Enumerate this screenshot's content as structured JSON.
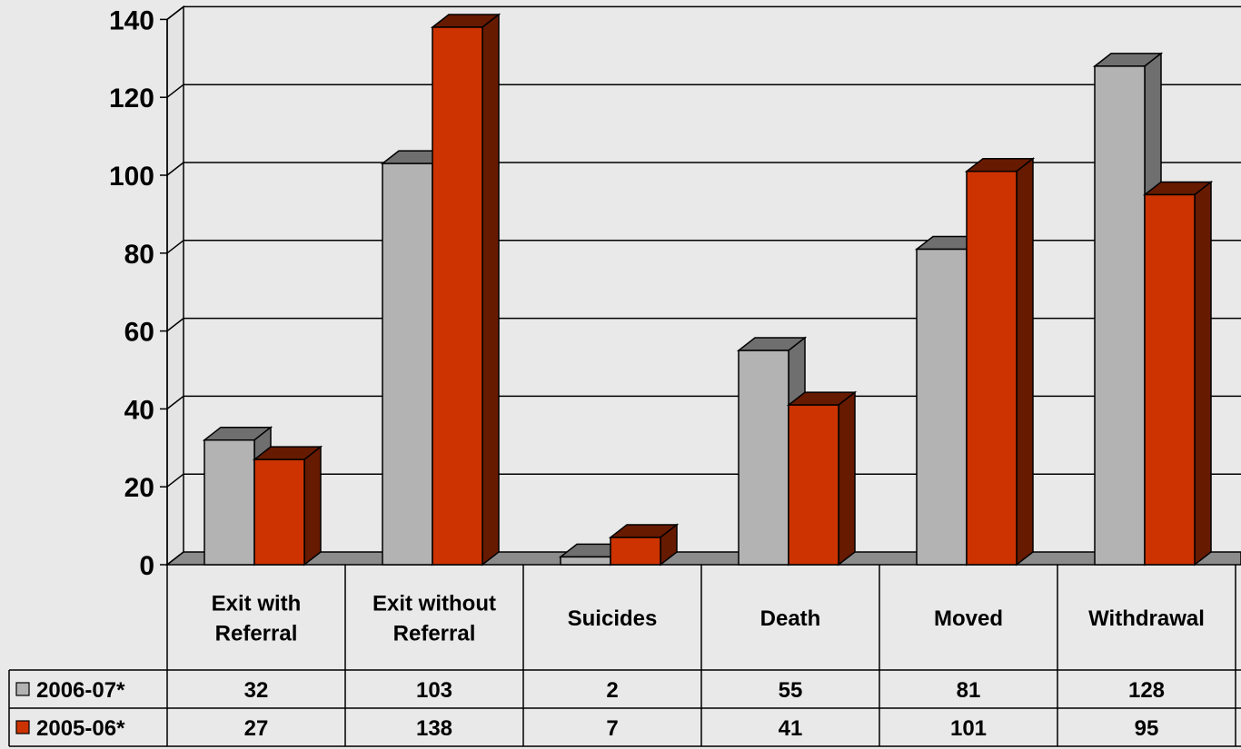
{
  "chart_data": {
    "type": "bar",
    "categories": [
      [
        "Exit with",
        "Referral"
      ],
      [
        "Exit without",
        "Referral"
      ],
      [
        "Suicides"
      ],
      [
        "Death"
      ],
      [
        "Moved"
      ],
      [
        "Withdrawal"
      ]
    ],
    "series": [
      {
        "name": "2006-07*",
        "color": "#b3b3b3",
        "side_color": "#6f6f6f",
        "values": [
          32,
          103,
          2,
          55,
          81,
          128
        ]
      },
      {
        "name": "2005-06*",
        "color": "#cc3300",
        "side_color": "#661a00",
        "values": [
          27,
          138,
          7,
          41,
          101,
          95
        ]
      }
    ],
    "yticks": [
      "0",
      "20",
      "40",
      "60",
      "80",
      "100",
      "120",
      "140"
    ],
    "ylim": [
      0,
      140
    ],
    "grid": true,
    "legend": "data-table",
    "data_table": true
  }
}
